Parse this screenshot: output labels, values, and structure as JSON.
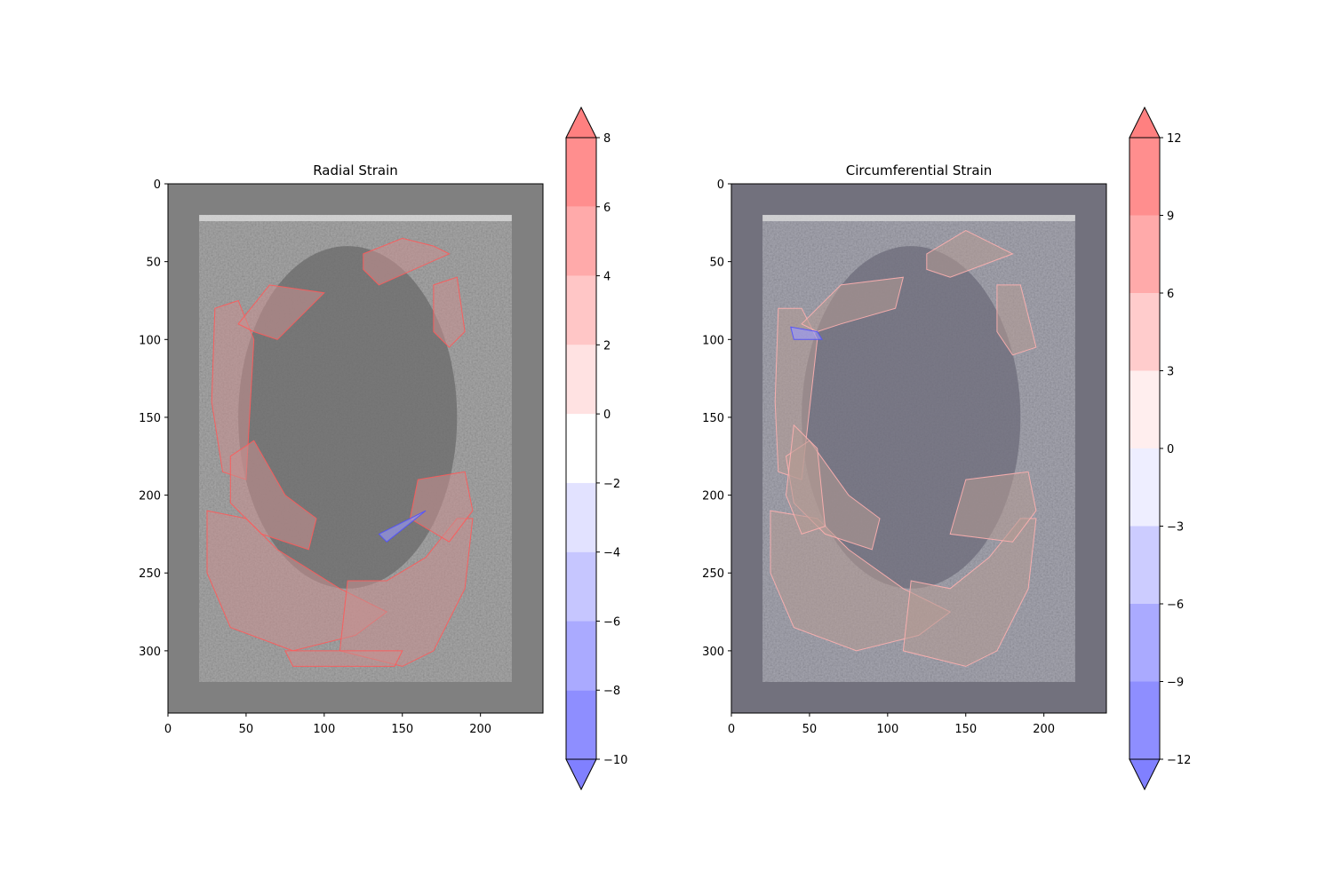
{
  "chart_data": [
    {
      "type": "heatmap",
      "title": "Radial Strain",
      "xlabel": "",
      "ylabel": "",
      "xlim": [
        0,
        240
      ],
      "ylim": [
        340,
        0
      ],
      "x_ticks": [
        0,
        50,
        100,
        150,
        200
      ],
      "y_ticks": [
        0,
        50,
        100,
        150,
        200,
        250,
        300
      ],
      "background": "#808080",
      "image_bounds": {
        "x": [
          20,
          220
        ],
        "y": [
          20,
          320
        ]
      },
      "overlay_tint": "#c89090",
      "colorbar": {
        "levels": [
          -10,
          -8,
          -6,
          -4,
          -2,
          0,
          2,
          4,
          6,
          8
        ],
        "tick_labels": [
          "−10",
          "−8",
          "−6",
          "−4",
          "−2",
          "0",
          "2",
          "4",
          "6",
          "8"
        ],
        "colors": [
          "#8e8eff",
          "#aaaaff",
          "#c6c6ff",
          "#e2e2ff",
          "#ffffff",
          "#ffe2e2",
          "#ffc6c6",
          "#ffaaaa",
          "#ff8e8e"
        ],
        "extend_low": "#8080ff",
        "extend_high": "#ff8080"
      },
      "strain_regions": [
        {
          "sign": "positive",
          "points": [
            [
              30,
              80
            ],
            [
              45,
              75
            ],
            [
              55,
              100
            ],
            [
              50,
              190
            ],
            [
              35,
              185
            ],
            [
              28,
              140
            ]
          ]
        },
        {
          "sign": "positive",
          "points": [
            [
              45,
              90
            ],
            [
              65,
              65
            ],
            [
              100,
              70
            ],
            [
              90,
              80
            ],
            [
              70,
              100
            ],
            [
              55,
              95
            ]
          ]
        },
        {
          "sign": "positive",
          "points": [
            [
              125,
              45
            ],
            [
              150,
              35
            ],
            [
              170,
              40
            ],
            [
              180,
              45
            ],
            [
              135,
              65
            ],
            [
              125,
              55
            ]
          ]
        },
        {
          "sign": "positive",
          "points": [
            [
              170,
              65
            ],
            [
              185,
              60
            ],
            [
              190,
              95
            ],
            [
              180,
              105
            ],
            [
              170,
              95
            ]
          ]
        },
        {
          "sign": "positive",
          "points": [
            [
              25,
              210
            ],
            [
              50,
              215
            ],
            [
              70,
              235
            ],
            [
              110,
              260
            ],
            [
              140,
              275
            ],
            [
              120,
              290
            ],
            [
              80,
              300
            ],
            [
              40,
              285
            ],
            [
              25,
              250
            ]
          ]
        },
        {
          "sign": "positive",
          "points": [
            [
              115,
              255
            ],
            [
              140,
              255
            ],
            [
              165,
              240
            ],
            [
              185,
              215
            ],
            [
              195,
              215
            ],
            [
              190,
              260
            ],
            [
              170,
              300
            ],
            [
              150,
              310
            ],
            [
              110,
              300
            ]
          ]
        },
        {
          "sign": "positive",
          "points": [
            [
              160,
              190
            ],
            [
              190,
              185
            ],
            [
              195,
              210
            ],
            [
              180,
              230
            ],
            [
              155,
              215
            ]
          ]
        },
        {
          "sign": "positive",
          "points": [
            [
              40,
              175
            ],
            [
              55,
              165
            ],
            [
              75,
              200
            ],
            [
              95,
              215
            ],
            [
              90,
              235
            ],
            [
              60,
              225
            ],
            [
              40,
              205
            ]
          ]
        },
        {
          "sign": "positive",
          "points": [
            [
              75,
              300
            ],
            [
              150,
              300
            ],
            [
              145,
              310
            ],
            [
              80,
              310
            ]
          ]
        },
        {
          "sign": "negative",
          "points": [
            [
              135,
              225
            ],
            [
              155,
              215
            ],
            [
              165,
              210
            ],
            [
              140,
              230
            ]
          ]
        }
      ]
    },
    {
      "type": "heatmap",
      "title": "Circumferential Strain",
      "xlabel": "",
      "ylabel": "",
      "xlim": [
        0,
        240
      ],
      "ylim": [
        340,
        0
      ],
      "x_ticks": [
        0,
        50,
        100,
        150,
        200
      ],
      "y_ticks": [
        0,
        50,
        100,
        150,
        200,
        250,
        300
      ],
      "background": "#72717d",
      "image_bounds": {
        "x": [
          20,
          220
        ],
        "y": [
          20,
          320
        ]
      },
      "overlay_tint": "#b49a94",
      "colorbar": {
        "levels": [
          -12,
          -9,
          -6,
          -3,
          0,
          3,
          6,
          9,
          12
        ],
        "tick_labels": [
          "−12",
          "−9",
          "−6",
          "−3",
          "0",
          "3",
          "6",
          "9",
          "12"
        ],
        "colors": [
          "#8e8eff",
          "#aaaaff",
          "#ccccff",
          "#eeeeff",
          "#ffeeee",
          "#ffcccc",
          "#ffaaaa",
          "#ff8e8e"
        ],
        "extend_low": "#8080ff",
        "extend_high": "#ff8080"
      },
      "strain_regions": [
        {
          "sign": "positive",
          "points": [
            [
              30,
              80
            ],
            [
              45,
              80
            ],
            [
              55,
              100
            ],
            [
              45,
              190
            ],
            [
              30,
              185
            ],
            [
              28,
              140
            ]
          ]
        },
        {
          "sign": "positive",
          "points": [
            [
              45,
              90
            ],
            [
              70,
              65
            ],
            [
              110,
              60
            ],
            [
              105,
              80
            ],
            [
              70,
              90
            ],
            [
              55,
              95
            ]
          ]
        },
        {
          "sign": "positive",
          "points": [
            [
              125,
              45
            ],
            [
              150,
              30
            ],
            [
              170,
              40
            ],
            [
              180,
              45
            ],
            [
              140,
              60
            ],
            [
              125,
              55
            ]
          ]
        },
        {
          "sign": "positive",
          "points": [
            [
              170,
              65
            ],
            [
              185,
              65
            ],
            [
              195,
              105
            ],
            [
              180,
              110
            ],
            [
              170,
              95
            ]
          ]
        },
        {
          "sign": "positive",
          "points": [
            [
              25,
              210
            ],
            [
              55,
              215
            ],
            [
              75,
              235
            ],
            [
              110,
              260
            ],
            [
              140,
              275
            ],
            [
              120,
              290
            ],
            [
              80,
              300
            ],
            [
              40,
              285
            ],
            [
              25,
              250
            ]
          ]
        },
        {
          "sign": "positive",
          "points": [
            [
              115,
              255
            ],
            [
              140,
              260
            ],
            [
              165,
              240
            ],
            [
              185,
              215
            ],
            [
              195,
              215
            ],
            [
              190,
              260
            ],
            [
              170,
              300
            ],
            [
              150,
              310
            ],
            [
              110,
              300
            ]
          ]
        },
        {
          "sign": "positive",
          "points": [
            [
              150,
              190
            ],
            [
              190,
              185
            ],
            [
              195,
              210
            ],
            [
              180,
              230
            ],
            [
              140,
              225
            ]
          ]
        },
        {
          "sign": "positive",
          "points": [
            [
              35,
              175
            ],
            [
              50,
              165
            ],
            [
              75,
              200
            ],
            [
              95,
              215
            ],
            [
              90,
              235
            ],
            [
              60,
              225
            ],
            [
              40,
              205
            ]
          ]
        },
        {
          "sign": "positive",
          "points": [
            [
              40,
              155
            ],
            [
              55,
              170
            ],
            [
              60,
              220
            ],
            [
              45,
              225
            ],
            [
              35,
              200
            ]
          ]
        },
        {
          "sign": "negative",
          "points": [
            [
              38,
              92
            ],
            [
              55,
              95
            ],
            [
              58,
              100
            ],
            [
              40,
              100
            ]
          ]
        }
      ]
    }
  ]
}
